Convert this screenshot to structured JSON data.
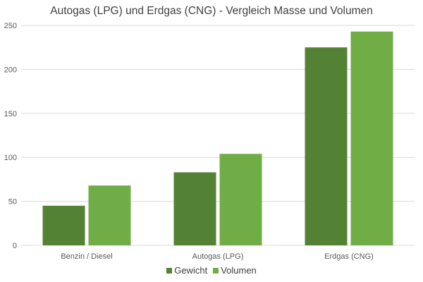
{
  "chart_data": {
    "type": "bar",
    "title": "Autogas (LPG) und Erdgas (CNG) - Vergleich Masse und Volumen",
    "categories": [
      "Benzin / Diesel",
      "Autogas (LPG)",
      "Erdgas (CNG)"
    ],
    "series": [
      {
        "name": "Gewicht",
        "values": [
          45,
          83,
          225
        ],
        "color": "#548235"
      },
      {
        "name": "Volumen",
        "values": [
          68,
          104,
          243
        ],
        "color": "#70AD47"
      }
    ],
    "xlabel": "",
    "ylabel": "",
    "ylim": [
      0,
      250
    ],
    "yticks": [
      0,
      50,
      100,
      150,
      200,
      250
    ],
    "grid": true,
    "legend": "bottom"
  }
}
